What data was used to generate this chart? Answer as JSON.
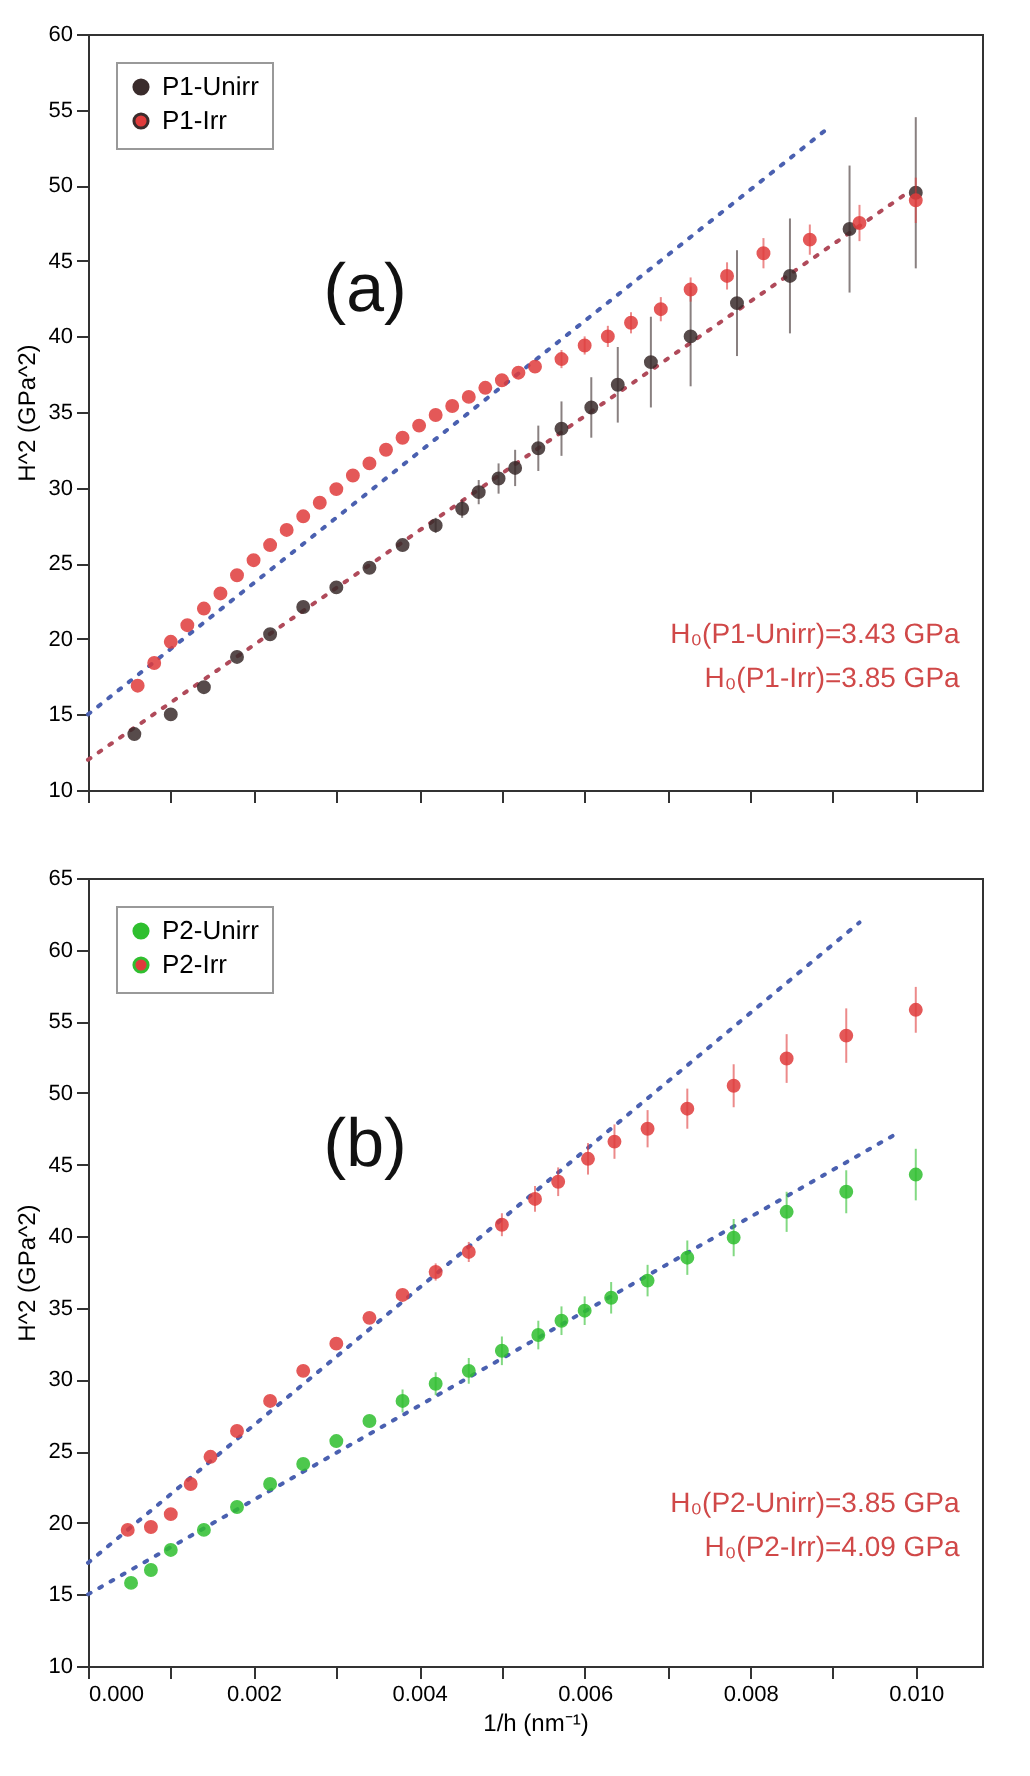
{
  "chart_data": [
    {
      "type": "scatter",
      "ylabel": "H^2 (GPa^2)",
      "xlim": [
        0,
        0.0108
      ],
      "ylim": [
        10,
        60
      ],
      "xticks": [
        0,
        0.001,
        0.002,
        0.003,
        0.004,
        0.005,
        0.006,
        0.007,
        0.008,
        0.009,
        0.01
      ],
      "yticks": [
        10,
        15,
        20,
        25,
        30,
        35,
        40,
        45,
        50,
        55,
        60
      ],
      "tick_labels": "y",
      "legend": "top left",
      "marker": "circle",
      "annotations": [
        "(a)",
        "H₀(P1-Unirr)=3.43 GPa",
        "H₀(P1-Irr)=3.85 GPa"
      ],
      "series": [
        {
          "name": "P1-Unirr",
          "color": "#3a2c2c",
          "x": [
            0.00056,
            0.001,
            0.0014,
            0.0018,
            0.0022,
            0.0026,
            0.003,
            0.0034,
            0.0038,
            0.0042,
            0.00452,
            0.00472,
            0.00496,
            0.00516,
            0.00544,
            0.00572,
            0.00608,
            0.0064,
            0.0068,
            0.00728,
            0.00784,
            0.00848,
            0.0092,
            0.01
          ],
          "values": [
            13.7,
            15.0,
            16.8,
            18.8,
            20.3,
            22.1,
            23.4,
            24.7,
            26.2,
            27.5,
            28.6,
            29.7,
            30.6,
            31.3,
            32.6,
            33.9,
            35.3,
            36.8,
            38.3,
            40.0,
            42.2,
            44.0,
            47.1,
            49.5
          ],
          "errors": [
            null,
            null,
            null,
            null,
            null,
            null,
            null,
            null,
            null,
            0.5,
            0.6,
            0.8,
            1.0,
            1.2,
            1.5,
            1.8,
            2.0,
            2.5,
            3.0,
            3.3,
            3.5,
            3.8,
            4.2,
            5.0
          ]
        },
        {
          "name": "P1-Irr",
          "color": "#e03c3c",
          "x": [
            0.0006,
            0.0008,
            0.001,
            0.0012,
            0.0014,
            0.0016,
            0.0018,
            0.002,
            0.0022,
            0.0024,
            0.0026,
            0.0028,
            0.003,
            0.0032,
            0.0034,
            0.0036,
            0.0038,
            0.004,
            0.0042,
            0.0044,
            0.0046,
            0.0048,
            0.005,
            0.0052,
            0.0054,
            0.00572,
            0.006,
            0.00628,
            0.00656,
            0.00692,
            0.00728,
            0.00772,
            0.00816,
            0.00872,
            0.00932,
            0.01
          ],
          "values": [
            16.9,
            18.4,
            19.8,
            20.9,
            22.0,
            23.0,
            24.2,
            25.2,
            26.2,
            27.2,
            28.1,
            29.0,
            29.9,
            30.8,
            31.6,
            32.5,
            33.3,
            34.1,
            34.8,
            35.4,
            36.0,
            36.6,
            37.1,
            37.6,
            38.0,
            38.5,
            39.4,
            40.0,
            40.9,
            41.8,
            43.1,
            44.0,
            45.5,
            46.4,
            47.5,
            49.0
          ],
          "errors": [
            null,
            null,
            null,
            null,
            null,
            null,
            null,
            null,
            null,
            null,
            null,
            null,
            null,
            null,
            null,
            null,
            null,
            null,
            null,
            null,
            null,
            null,
            null,
            null,
            null,
            0.6,
            0.6,
            0.7,
            0.7,
            0.8,
            0.8,
            0.9,
            1.0,
            1.0,
            1.2,
            1.5
          ]
        },
        {
          "type": "line",
          "color": "#4a60b0",
          "line_style": "dotted",
          "marker": "none",
          "x": [
            0,
            0.0089
          ],
          "values": [
            15,
            53.6
          ]
        },
        {
          "type": "line",
          "color": "#b04a5a",
          "line_style": "dotted",
          "marker": "none",
          "x": [
            0,
            0.0099
          ],
          "values": [
            12,
            49.5
          ]
        }
      ]
    },
    {
      "type": "scatter",
      "xlabel": "1/h (nm⁻¹)",
      "ylabel": "H^2 (GPa^2)",
      "xlim": [
        0,
        0.0108
      ],
      "ylim": [
        10,
        65
      ],
      "xticks": [
        {
          "value": 0,
          "label": "0.000"
        },
        {
          "value": 0.001,
          "label": null
        },
        0.002,
        {
          "value": 0.003,
          "label": null
        },
        0.004,
        {
          "value": 0.005,
          "label": null
        },
        0.006,
        {
          "value": 0.007,
          "label": null
        },
        0.008,
        {
          "value": 0.009,
          "label": null
        },
        {
          "value": 0.01,
          "label": "0.010"
        }
      ],
      "yticks": [
        10,
        15,
        20,
        25,
        30,
        35,
        40,
        45,
        50,
        55,
        60,
        65
      ],
      "legend": "top left",
      "marker": "circle",
      "annotations": [
        "(b)",
        "H₀(P2-Unirr)=3.85 GPa",
        "H₀(P2-Irr)=4.09 GPa"
      ],
      "series": [
        {
          "name": "P2-Unirr",
          "color": "#2fbf2f",
          "x": [
            0.00052,
            0.00076,
            0.001,
            0.0014,
            0.0018,
            0.0022,
            0.0026,
            0.003,
            0.0034,
            0.0038,
            0.0042,
            0.0046,
            0.005,
            0.00544,
            0.00572,
            0.006,
            0.00632,
            0.00676,
            0.00724,
            0.0078,
            0.00844,
            0.00916,
            0.01
          ],
          "values": [
            15.8,
            16.7,
            18.1,
            19.5,
            21.1,
            22.7,
            24.1,
            25.7,
            27.1,
            28.5,
            29.7,
            30.6,
            32.0,
            33.1,
            34.1,
            34.8,
            35.7,
            36.9,
            38.5,
            39.9,
            41.7,
            43.1,
            44.3
          ],
          "errors": [
            null,
            null,
            null,
            null,
            null,
            null,
            null,
            null,
            null,
            0.8,
            0.8,
            0.9,
            1.0,
            1.0,
            1.0,
            1.0,
            1.1,
            1.1,
            1.2,
            1.3,
            1.4,
            1.5,
            1.8
          ]
        },
        {
          "name": "P2-Irr",
          "color": "#e03c3c",
          "x": [
            0.00048,
            0.00076,
            0.001,
            0.00124,
            0.00148,
            0.0018,
            0.0022,
            0.0026,
            0.003,
            0.0034,
            0.0038,
            0.0042,
            0.0046,
            0.005,
            0.0054,
            0.00568,
            0.00604,
            0.00636,
            0.00676,
            0.00724,
            0.0078,
            0.00844,
            0.00916,
            0.01
          ],
          "values": [
            19.5,
            19.7,
            20.6,
            22.7,
            24.6,
            26.4,
            28.5,
            30.6,
            32.5,
            34.3,
            35.9,
            37.5,
            38.9,
            40.8,
            42.6,
            43.8,
            45.4,
            46.6,
            47.5,
            48.9,
            50.5,
            52.4,
            54.0,
            55.8
          ],
          "errors": [
            null,
            null,
            null,
            null,
            null,
            null,
            null,
            null,
            null,
            null,
            null,
            0.6,
            0.7,
            0.8,
            0.9,
            1.0,
            1.1,
            1.2,
            1.3,
            1.4,
            1.5,
            1.7,
            1.9,
            1.6
          ]
        },
        {
          "type": "line",
          "color": "#4a60b0",
          "line_style": "dotted",
          "marker": "none",
          "x": [
            0,
            0.00932
          ],
          "values": [
            17.2,
            61.9
          ]
        },
        {
          "type": "line",
          "color": "#4a60b0",
          "line_style": "dotted",
          "marker": "none",
          "x": [
            0,
            0.00972
          ],
          "values": [
            15,
            47.0
          ]
        }
      ]
    }
  ]
}
